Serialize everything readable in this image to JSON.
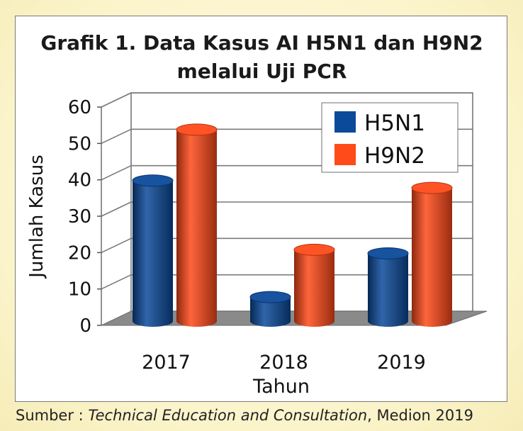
{
  "chart_data": {
    "type": "bar",
    "title_line1": "Grafik 1. Data Kasus AI H5N1 dan H9N2",
    "title_line2": "melalui Uji PCR",
    "xlabel": "Tahun",
    "ylabel": "Jumlah Kasus",
    "categories": [
      "2017",
      "2018",
      "2019"
    ],
    "series": [
      {
        "name": "H5N1",
        "values": [
          39,
          7,
          19
        ],
        "color": "#0b4a9a"
      },
      {
        "name": "H9N2",
        "values": [
          53,
          20,
          37
        ],
        "color": "#ff4a1a"
      }
    ],
    "ylim": [
      0,
      60
    ],
    "yticks": [
      "0",
      "10",
      "20",
      "30",
      "40",
      "50",
      "60"
    ],
    "grid": true,
    "legend": "top-right",
    "three_d": true
  },
  "source": {
    "prefix": "Sumber : ",
    "italic": "Technical Education and Consultation",
    "suffix": ", Medion 2019"
  }
}
